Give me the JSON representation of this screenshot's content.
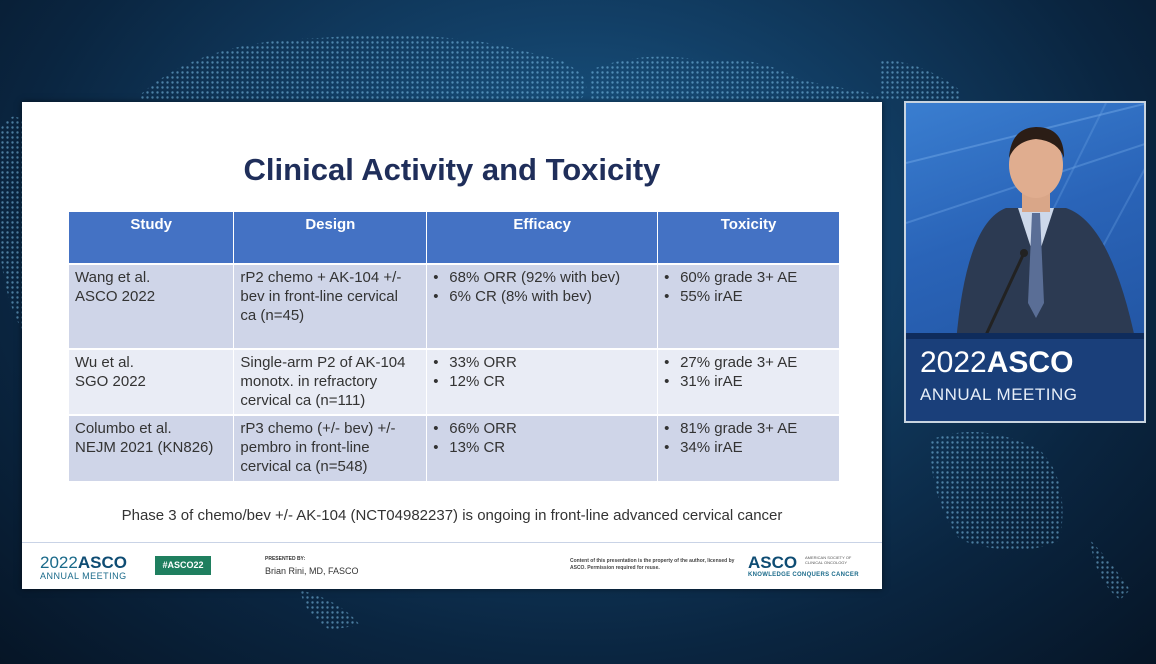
{
  "slide": {
    "title": "Clinical Activity and Toxicity",
    "table": {
      "headers": [
        "Study",
        "Design",
        "Efficacy",
        "Toxicity"
      ],
      "rows": [
        {
          "study": [
            "Wang et al.",
            "ASCO 2022"
          ],
          "design": [
            "rP2 chemo + AK-104 +/-",
            "bev in front-line cervical",
            "ca (n=45)"
          ],
          "efficacy": [
            "68% ORR (92% with bev)",
            "6% CR (8% with bev)"
          ],
          "toxicity": [
            "60% grade 3+ AE",
            "55% irAE"
          ]
        },
        {
          "study": [
            "Wu et al.",
            "SGO 2022"
          ],
          "design": [
            "Single-arm P2 of AK-104",
            "monotx. in refractory",
            "cervical ca (n=111)"
          ],
          "efficacy": [
            "33% ORR",
            "12% CR"
          ],
          "toxicity": [
            "27% grade 3+ AE",
            "31% irAE"
          ]
        },
        {
          "study": [
            "Columbo et al.",
            "NEJM 2021 (KN826)"
          ],
          "design": [
            "rP3 chemo (+/- bev) +/-",
            "pembro in front-line",
            "cervical ca (n=548)"
          ],
          "efficacy": [
            "66% ORR",
            "13% CR"
          ],
          "toxicity": [
            "81% grade 3+ AE",
            "34% irAE"
          ]
        }
      ]
    },
    "footnote": "Phase 3 of chemo/bev +/- AK-104 (NCT04982237) is ongoing in front-line advanced cervical cancer",
    "footer": {
      "year": "2022",
      "asco": "ASCO",
      "annual_meeting": "ANNUAL MEETING",
      "hashtag": "#ASCO22",
      "presented_by_label": "PRESENTED BY:",
      "presenter": "Brian Rini, MD, FASCO",
      "disclaimer": "Content of this presentation is the property of the author, licensed by ASCO. Permission required for reuse.",
      "logo": "ASCO",
      "society": "AMERICAN SOCIETY OF CLINICAL ONCOLOGY",
      "tagline": "KNOWLEDGE CONQUERS CANCER"
    }
  },
  "video": {
    "podium_year": "2022",
    "podium_asco": "ASCO",
    "podium_annual": "ANNUAL MEETING"
  },
  "colors": {
    "header_blue": "#4472c4",
    "title_navy": "#1f2e5a",
    "row_dark": "#cfd5e8",
    "row_light": "#e9ecf5",
    "hashtag_green": "#1f7f5f"
  }
}
